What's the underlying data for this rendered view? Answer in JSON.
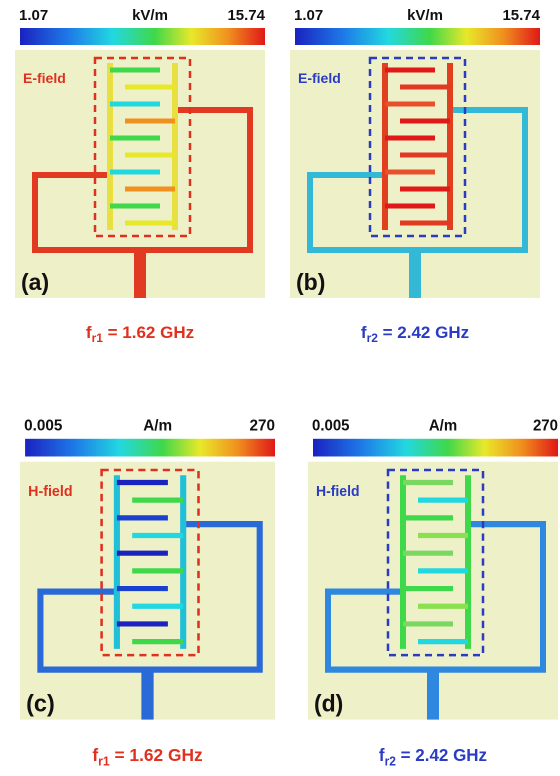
{
  "panels": [
    {
      "label": "(a)",
      "field": "E-field",
      "colorbar": {
        "min": "1.07",
        "unit": "kV/m",
        "max": "15.74"
      },
      "frequency": {
        "symbol": "f",
        "subscript": "r1",
        "value": " = 1.62 GHz"
      }
    },
    {
      "label": "(b)",
      "field": "E-field",
      "colorbar": {
        "min": "1.07",
        "unit": "kV/m",
        "max": "15.74"
      },
      "frequency": {
        "symbol": "f",
        "subscript": "r2",
        "value": " = 2.42 GHz"
      }
    },
    {
      "label": "(c)",
      "field": "H-field",
      "colorbar": {
        "min": "0.005",
        "unit": "A/m",
        "max": "270"
      },
      "frequency": {
        "symbol": "f",
        "subscript": "r1",
        "value": " = 1.62 GHz"
      }
    },
    {
      "label": "(d)",
      "field": "H-field",
      "colorbar": {
        "min": "0.005",
        "unit": "A/m",
        "max": "270"
      },
      "frequency": {
        "symbol": "f",
        "subscript": "r2",
        "value": " = 2.42 GHz"
      }
    }
  ]
}
